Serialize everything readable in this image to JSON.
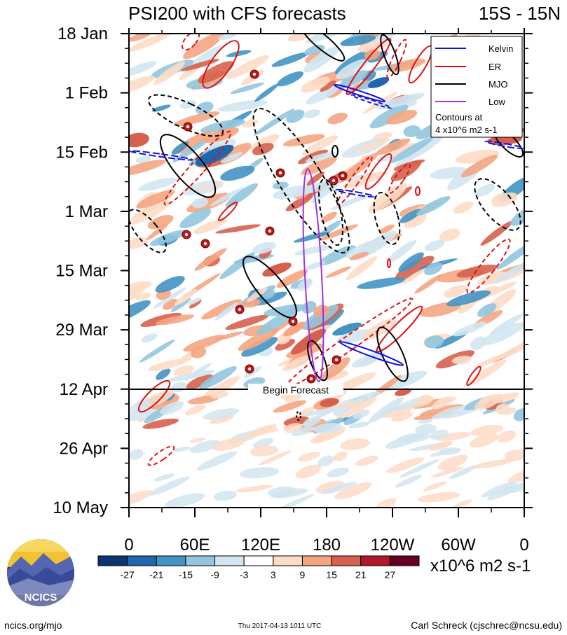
{
  "chart_data": {
    "type": "heatmap",
    "title": "PSI200 with CFS forecasts",
    "region": "15S - 15N",
    "x_tick_labels": [
      "0",
      "60E",
      "120E",
      "180",
      "120W",
      "60W",
      "0"
    ],
    "x_tick_values_deg": [
      0,
      60,
      120,
      180,
      240,
      300,
      360
    ],
    "xlim_deg": [
      0,
      360
    ],
    "y_tick_labels": [
      "18 Jan",
      "1 Feb",
      "15 Feb",
      "1 Mar",
      "15 Mar",
      "29 Mar",
      "12 Apr",
      "26 Apr",
      "10 May"
    ],
    "y_range": [
      "18 Jan",
      "10 May"
    ],
    "forecast_start": "12 Apr",
    "forecast_label": "Begin Forecast",
    "legend": {
      "placement": "top-right",
      "entries": [
        {
          "name": "Kelvin",
          "color": "#1010e0"
        },
        {
          "name": "ER",
          "color": "#e01010"
        },
        {
          "name": "MJO",
          "color": "#000000"
        },
        {
          "name": "Low",
          "color": "#a030e0"
        }
      ],
      "note_line1": "Contours at",
      "note_line2": "4 x10^6 m2 s-1"
    },
    "colorbar": {
      "tick_labels": [
        "-27",
        "-21",
        "-15",
        "-9",
        "-3",
        "3",
        "9",
        "15",
        "21",
        "27"
      ],
      "colors": [
        "#0b3470",
        "#2166ac",
        "#4393c3",
        "#92c5de",
        "#d1e5f0",
        "#ffffff",
        "#fddbc7",
        "#f4a582",
        "#d6604d",
        "#b2182b",
        "#67001f"
      ],
      "units": "x10^6 m2 s-1"
    }
  },
  "footer": {
    "logo_text": "NCICS",
    "left": "ncics.org/mjo",
    "center": "Thu 2017-04-13 1011 UTC",
    "right": "Carl Schreck (cjschrec@ncsu.edu)"
  }
}
